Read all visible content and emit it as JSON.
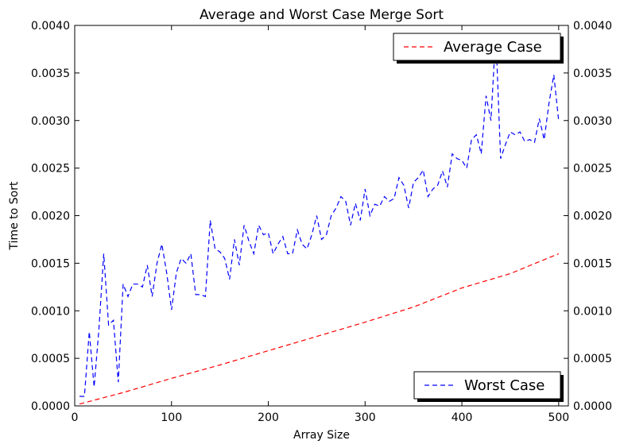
{
  "chart_data": {
    "type": "line",
    "title": "Average and Worst Case Merge Sort",
    "xlabel": "Array Size",
    "ylabel": "Time to Sort",
    "xlim": [
      0,
      510
    ],
    "ylim": [
      0,
      0.004
    ],
    "xticks": [
      "0",
      "100",
      "200",
      "300",
      "400",
      "500"
    ],
    "yticks": [
      "0.0000",
      "0.0005",
      "0.0010",
      "0.0015",
      "0.0020",
      "0.0025",
      "0.0030",
      "0.0035",
      "0.0040"
    ],
    "grid": false,
    "legend_average": "Average Case",
    "legend_worst": "Worst Case",
    "series": [
      {
        "name": "Average Case",
        "color": "#ff0000",
        "style": "dashed",
        "axis": "left",
        "x": [
          5,
          50,
          100,
          150,
          200,
          250,
          300,
          350,
          400,
          450,
          500
        ],
        "y": [
          2e-05,
          0.00014,
          0.00029,
          0.00043,
          0.00058,
          0.00073,
          0.00088,
          0.00104,
          0.00124,
          0.00139,
          0.0016
        ]
      },
      {
        "name": "Worst Case",
        "color": "#0000ff",
        "style": "dashed",
        "axis": "right",
        "x": [
          5,
          10,
          15,
          20,
          25,
          30,
          35,
          40,
          45,
          50,
          55,
          60,
          65,
          70,
          75,
          80,
          85,
          90,
          95,
          100,
          105,
          110,
          115,
          120,
          125,
          130,
          135,
          140,
          145,
          150,
          155,
          160,
          165,
          170,
          175,
          180,
          185,
          190,
          195,
          200,
          205,
          210,
          215,
          220,
          225,
          230,
          235,
          240,
          245,
          250,
          255,
          260,
          265,
          270,
          275,
          280,
          285,
          290,
          295,
          300,
          305,
          310,
          315,
          320,
          325,
          330,
          335,
          340,
          345,
          350,
          355,
          360,
          365,
          370,
          375,
          380,
          385,
          390,
          395,
          400,
          405,
          410,
          415,
          420,
          425,
          430,
          435,
          440,
          445,
          450,
          455,
          460,
          465,
          470,
          475,
          480,
          485,
          490,
          495,
          500
        ],
        "y": [
          0.0001,
          0.0001,
          0.00078,
          0.0002,
          0.0008,
          0.0016,
          0.00085,
          0.0009,
          0.00025,
          0.00128,
          0.00115,
          0.00128,
          0.00128,
          0.00125,
          0.00148,
          0.00115,
          0.0015,
          0.0017,
          0.0014,
          0.00101,
          0.0014,
          0.00155,
          0.0015,
          0.0016,
          0.00117,
          0.00117,
          0.00115,
          0.00195,
          0.00165,
          0.00162,
          0.00155,
          0.00133,
          0.00175,
          0.00148,
          0.0019,
          0.00173,
          0.0016,
          0.0019,
          0.0018,
          0.00182,
          0.0016,
          0.0017,
          0.00178,
          0.0016,
          0.0016,
          0.00185,
          0.0017,
          0.00165,
          0.0018,
          0.002,
          0.00175,
          0.0018,
          0.002,
          0.00208,
          0.0022,
          0.00215,
          0.0019,
          0.00213,
          0.00195,
          0.00228,
          0.002,
          0.00212,
          0.0021,
          0.0022,
          0.00215,
          0.00218,
          0.0024,
          0.00232,
          0.00208,
          0.00235,
          0.0024,
          0.00248,
          0.0022,
          0.00228,
          0.00232,
          0.00247,
          0.0023,
          0.00265,
          0.0026,
          0.00258,
          0.0025,
          0.0028,
          0.00285,
          0.00265,
          0.00326,
          0.003,
          0.00392,
          0.0026,
          0.00275,
          0.00288,
          0.00285,
          0.00288,
          0.00278,
          0.0028,
          0.00277,
          0.00302,
          0.0028,
          0.00318,
          0.00348,
          0.003
        ]
      }
    ]
  }
}
